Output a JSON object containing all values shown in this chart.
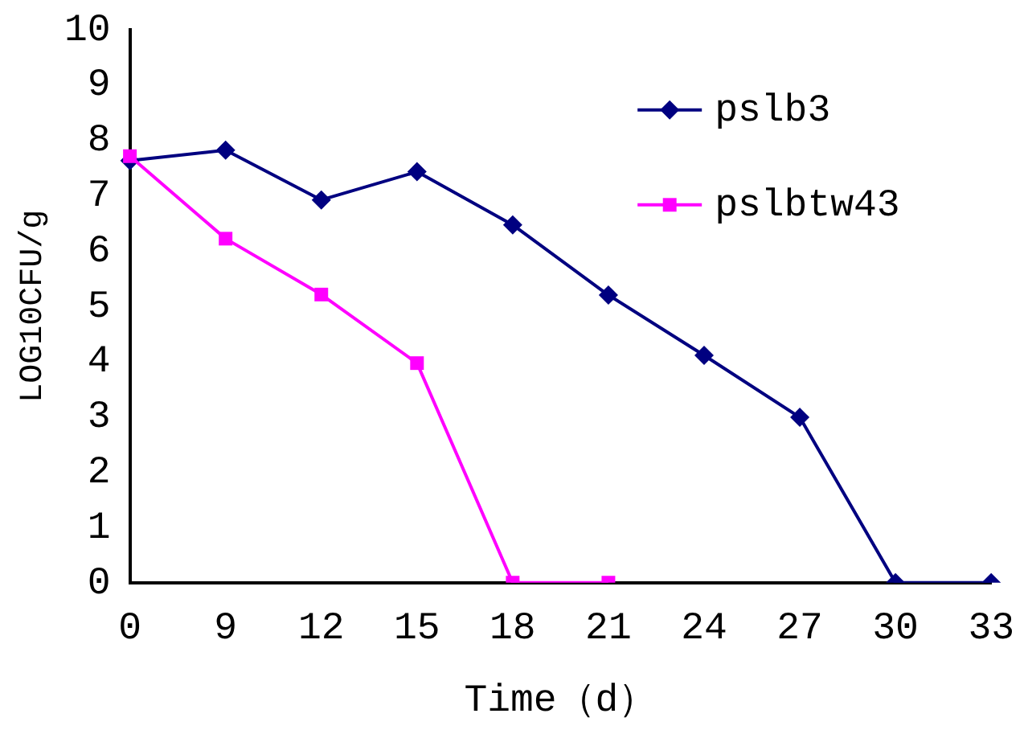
{
  "chart_data": {
    "type": "line",
    "xlabel": "Time（d）",
    "ylabel": "LOG10CFU/g",
    "categories": [
      "0",
      "9",
      "12",
      "15",
      "18",
      "21",
      "24",
      "27",
      "30",
      "33"
    ],
    "series": [
      {
        "name": "pslb3",
        "color": "#000080",
        "marker": "diamond",
        "values": [
          7.63,
          7.82,
          6.92,
          7.43,
          6.47,
          5.2,
          4.11,
          2.99,
          0,
          0
        ]
      },
      {
        "name": "pslbtw43",
        "color": "#ff00ff",
        "marker": "square",
        "values": [
          7.71,
          6.22,
          5.21,
          3.97,
          0,
          0,
          null,
          null,
          null,
          null
        ]
      }
    ],
    "ylim": [
      0,
      10
    ],
    "yticks": [
      0,
      1,
      2,
      3,
      4,
      5,
      6,
      7,
      8,
      9,
      10
    ],
    "grid": false,
    "legend": "top right",
    "line_style": "solid"
  }
}
